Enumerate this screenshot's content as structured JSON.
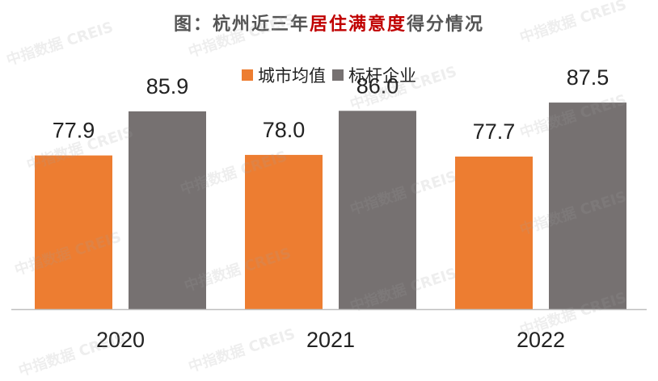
{
  "title": {
    "prefix": "图：杭州近三年",
    "highlight": "居住满意度",
    "suffix": "得分情况"
  },
  "watermark": "中指数据 CREIS",
  "colors": {
    "city_avg": "#ed7d31",
    "benchmark": "#767171",
    "title_highlight": "#c00000",
    "axis": "#bfbfbf"
  },
  "chart_data": {
    "type": "bar",
    "title": "图：杭州近三年居住满意度得分情况",
    "categories": [
      "2020",
      "2021",
      "2022"
    ],
    "series": [
      {
        "name": "城市均值",
        "values": [
          77.9,
          78.0,
          77.7
        ],
        "labels": [
          "77.9",
          "78.0",
          "77.7"
        ]
      },
      {
        "name": "标杆企业",
        "values": [
          85.9,
          86.0,
          87.5
        ],
        "labels": [
          "85.9",
          "86.0",
          "87.5"
        ]
      }
    ],
    "ylim": [
      50,
      90
    ],
    "grid": false,
    "legend": "top-center",
    "xlabel": "",
    "ylabel": ""
  }
}
